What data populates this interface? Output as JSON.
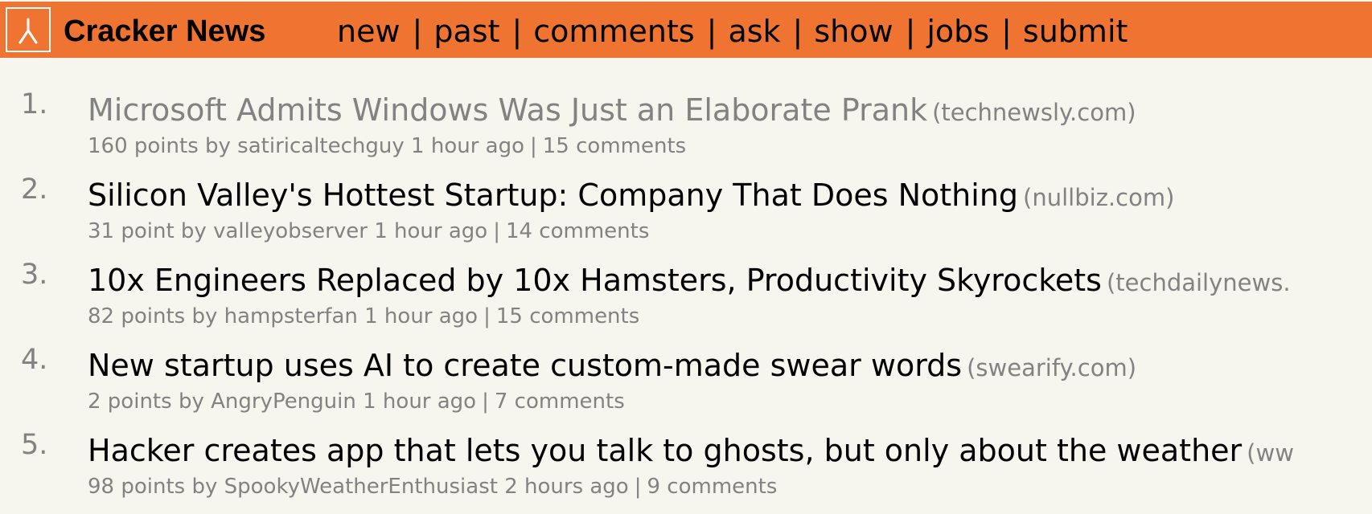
{
  "header": {
    "logo_icon": "cracker-logo-icon",
    "site_name": "Cracker News",
    "nav": [
      {
        "label": "new"
      },
      {
        "label": "past"
      },
      {
        "label": "comments"
      },
      {
        "label": "ask"
      },
      {
        "label": "show"
      },
      {
        "label": "jobs"
      },
      {
        "label": "submit"
      }
    ],
    "separator": "|",
    "colors": {
      "bar": "#ef7432",
      "background": "#f6f6ef",
      "muted_text": "#828282"
    }
  },
  "stories": [
    {
      "rank": "1.",
      "title": "Microsoft Admits Windows Was Just an Elaborate Prank",
      "domain": "(technewsly.com)",
      "points": "160 points",
      "by": "by",
      "user": "satiricaltechguy",
      "age": "1 hour ago",
      "separator": "|",
      "comments": "15 comments"
    },
    {
      "rank": "2.",
      "title": "Silicon Valley's Hottest Startup: Company That Does Nothing",
      "domain": "(nullbiz.com)",
      "points": "31 point",
      "by": "by",
      "user": "valleyobserver",
      "age": "1 hour ago",
      "separator": "|",
      "comments": "14 comments"
    },
    {
      "rank": "3.",
      "title": "10x Engineers Replaced by 10x Hamsters, Productivity Skyrockets",
      "domain": "(techdailynews.",
      "points": "82 points",
      "by": "by",
      "user": "hampsterfan",
      "age": "1 hour ago",
      "separator": "|",
      "comments": "15 comments"
    },
    {
      "rank": "4.",
      "title": "New startup uses AI to create custom-made swear words",
      "domain": "(swearify.com)",
      "points": "2 points",
      "by": "by",
      "user": "AngryPenguin",
      "age": "1 hour ago",
      "separator": "|",
      "comments": "7 comments"
    },
    {
      "rank": "5.",
      "title": "Hacker creates app that lets you talk to ghosts, but only about the weather",
      "domain": "(ww",
      "points": "98 points",
      "by": "by",
      "user": "SpookyWeatherEnthusiast",
      "age": "2 hours ago",
      "separator": "|",
      "comments": "9 comments"
    }
  ]
}
